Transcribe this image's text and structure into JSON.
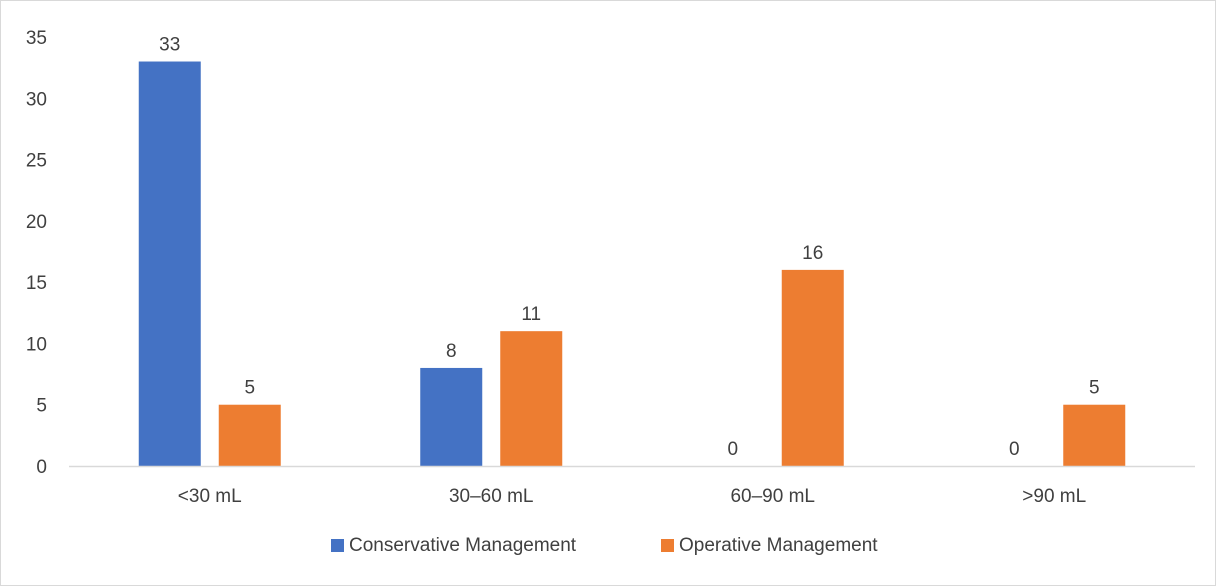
{
  "chart_data": {
    "type": "bar",
    "title": "",
    "xlabel": "",
    "ylabel": "",
    "categories": [
      "<30 mL",
      "30–60 mL",
      "60–90 mL",
      ">90 mL"
    ],
    "series": [
      {
        "name": "Conservative Management",
        "color": "#4472c4",
        "values": [
          33,
          8,
          0,
          0
        ]
      },
      {
        "name": "Operative Management",
        "color": "#ed7d31",
        "values": [
          5,
          11,
          16,
          5
        ]
      }
    ],
    "ylim": [
      0,
      35
    ],
    "yticks": [
      0,
      5,
      10,
      15,
      20,
      25,
      30,
      35
    ],
    "data_labels": true,
    "grid": false,
    "legend_position": "bottom"
  }
}
